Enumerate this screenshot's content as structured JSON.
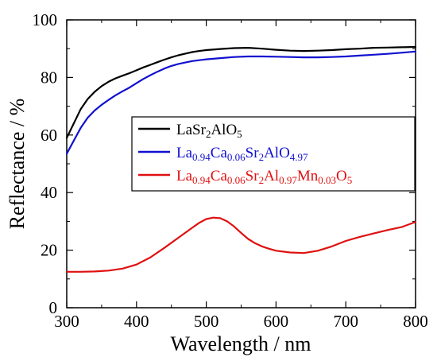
{
  "chart_data": {
    "type": "line",
    "xlabel": "Wavelength / nm",
    "ylabel": "Reflectance / %",
    "xlim": [
      300,
      800
    ],
    "ylim": [
      0,
      100
    ],
    "xticks": [
      "300",
      "400",
      "500",
      "600",
      "700",
      "800"
    ],
    "yticks": [
      "0",
      "20",
      "40",
      "60",
      "80",
      "100"
    ],
    "grid": false,
    "legend_placement": "center-right",
    "series": [
      {
        "name": "LaSr2AlO5",
        "legend_parts": [
          [
            "LaSr",
            ""
          ],
          [
            "2",
            "sub"
          ],
          [
            "AlO",
            ""
          ],
          [
            "5",
            "sub"
          ]
        ],
        "color": "#000000",
        "x": [
          300,
          310,
          320,
          330,
          340,
          350,
          360,
          370,
          380,
          390,
          400,
          410,
          420,
          430,
          440,
          450,
          460,
          470,
          480,
          490,
          500,
          520,
          540,
          560,
          580,
          600,
          620,
          640,
          660,
          680,
          700,
          720,
          740,
          760,
          780,
          800
        ],
        "y": [
          59,
          64,
          69,
          72.5,
          75,
          77,
          78.5,
          79.7,
          80.6,
          81.5,
          82.5,
          83.5,
          84.4,
          85.3,
          86.2,
          87,
          87.7,
          88.3,
          88.8,
          89.2,
          89.5,
          89.9,
          90.2,
          90.3,
          90,
          89.6,
          89.3,
          89.2,
          89.3,
          89.5,
          89.8,
          90,
          90.3,
          90.4,
          90.5,
          90.6
        ]
      },
      {
        "name": "La0.94Ca0.06Sr2AlO4.97",
        "legend_parts": [
          [
            "La",
            ""
          ],
          [
            "0.94",
            "sub"
          ],
          [
            "Ca",
            ""
          ],
          [
            "0.06",
            "sub"
          ],
          [
            "Sr",
            ""
          ],
          [
            "2",
            "sub"
          ],
          [
            "AlO",
            ""
          ],
          [
            "4.97",
            "sub"
          ]
        ],
        "color": "#1010d0",
        "x": [
          300,
          310,
          320,
          330,
          340,
          350,
          360,
          370,
          380,
          390,
          400,
          410,
          420,
          430,
          440,
          450,
          460,
          470,
          480,
          490,
          500,
          520,
          540,
          560,
          580,
          600,
          620,
          640,
          660,
          680,
          700,
          720,
          740,
          760,
          780,
          800
        ],
        "y": [
          53.5,
          58,
          62.5,
          66,
          68.5,
          70.5,
          72.2,
          73.8,
          75.2,
          76.5,
          78,
          79.5,
          80.8,
          82,
          83.1,
          84,
          84.7,
          85.2,
          85.7,
          86,
          86.3,
          86.7,
          87.1,
          87.3,
          87.3,
          87.2,
          87.1,
          87,
          87,
          87.1,
          87.3,
          87.6,
          87.9,
          88.2,
          88.6,
          89
        ]
      },
      {
        "name": "La0.94Ca0.06Sr2Al0.97Mn0.03O5",
        "legend_parts": [
          [
            "La",
            ""
          ],
          [
            "0.94",
            "sub"
          ],
          [
            "Ca",
            ""
          ],
          [
            "0.06",
            "sub"
          ],
          [
            "Sr",
            ""
          ],
          [
            "2",
            "sub"
          ],
          [
            "Al",
            ""
          ],
          [
            "0.97",
            "sub"
          ],
          [
            "Mn",
            ""
          ],
          [
            "0.03",
            "sub"
          ],
          [
            "O",
            ""
          ],
          [
            "5",
            "sub"
          ]
        ],
        "color": "#e01010",
        "x": [
          300,
          320,
          340,
          360,
          380,
          400,
          420,
          440,
          460,
          480,
          490,
          500,
          510,
          520,
          530,
          540,
          550,
          560,
          570,
          580,
          590,
          600,
          620,
          640,
          660,
          680,
          700,
          720,
          740,
          760,
          780,
          800
        ],
        "y": [
          12.5,
          12.5,
          12.6,
          12.9,
          13.6,
          15,
          17.5,
          20.8,
          24.3,
          27.8,
          29.5,
          30.8,
          31.3,
          31.1,
          30,
          28.2,
          26,
          23.9,
          22.4,
          21.3,
          20.5,
          19.8,
          19.2,
          19,
          19.8,
          21.3,
          23.2,
          24.6,
          25.8,
          27,
          28,
          29.8
        ]
      }
    ]
  }
}
